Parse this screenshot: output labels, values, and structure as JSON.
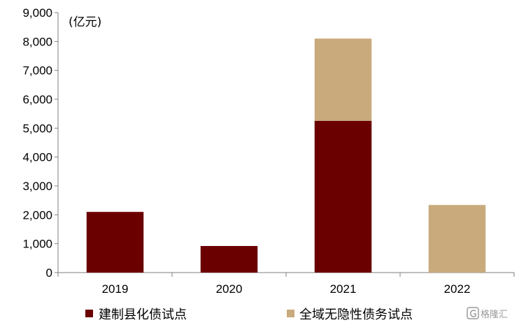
{
  "chart_data": {
    "type": "bar",
    "stacked": true,
    "unit_label": "(亿元)",
    "categories": [
      "2019",
      "2020",
      "2021",
      "2022"
    ],
    "series": [
      {
        "name": "建制县化债试点",
        "values": [
          2100,
          920,
          5250,
          0
        ],
        "color": "#6b0000"
      },
      {
        "name": "全域无隐性债务试点",
        "values": [
          0,
          0,
          2850,
          2340
        ],
        "color": "#c8aa7d"
      }
    ],
    "ylim": [
      0,
      9000
    ],
    "y_ticks": [
      "0",
      "1,000",
      "2,000",
      "3,000",
      "4,000",
      "5,000",
      "6,000",
      "7,000",
      "8,000",
      "9,000"
    ],
    "grid": false,
    "legend_position": "bottom"
  },
  "watermark": {
    "text": "格隆汇",
    "icon": "g-logo-icon"
  }
}
